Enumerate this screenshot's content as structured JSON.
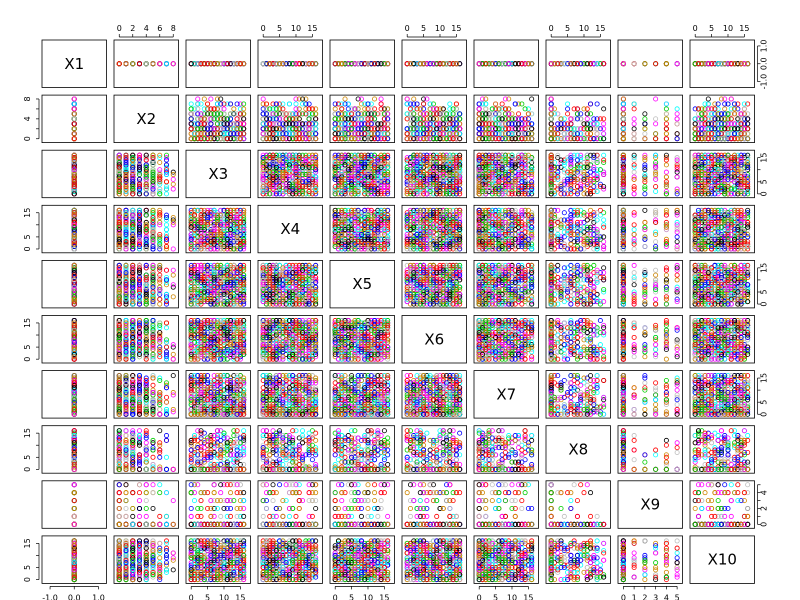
{
  "chart_data": {
    "type": "scatter",
    "title": "",
    "variables": [
      "X1",
      "X2",
      "X3",
      "X4",
      "X5",
      "X6",
      "X7",
      "X8",
      "X9",
      "X10"
    ],
    "axis_ranges": [
      [
        -1.2,
        1.2
      ],
      [
        -0.3,
        8.3
      ],
      [
        -0.6,
        17.1
      ],
      [
        -0.6,
        17.1
      ],
      [
        -0.6,
        17.1
      ],
      [
        -0.6,
        17.1
      ],
      [
        -0.6,
        17.1
      ],
      [
        -0.6,
        17.1
      ],
      [
        -0.2,
        5.2
      ],
      [
        -0.6,
        17.1
      ]
    ],
    "ticks": [
      [
        -1.0,
        0.0,
        1.0
      ],
      [
        0,
        2,
        4,
        6,
        8
      ],
      [
        0,
        5,
        10,
        15
      ],
      [
        0,
        5,
        10,
        15
      ],
      [
        0,
        5,
        10,
        15
      ],
      [
        0,
        5,
        10,
        15
      ],
      [
        0,
        5,
        10,
        15
      ],
      [
        0,
        5,
        10,
        15
      ],
      [
        0,
        1,
        2,
        3,
        4,
        5
      ],
      [
        0,
        5,
        10,
        15
      ]
    ],
    "tick_labels": [
      [
        "-1.0",
        "0.0",
        "1.0"
      ],
      [
        "0",
        "2",
        "4",
        "6",
        "8"
      ],
      [
        "0",
        "5",
        "10",
        "15"
      ],
      [
        "0",
        "5",
        "10",
        "15"
      ],
      [
        "0",
        "5",
        "10",
        "15"
      ],
      [
        "0",
        "5",
        "10",
        "15"
      ],
      [
        "0",
        "5",
        "10",
        "15"
      ],
      [
        "0",
        "5",
        "10",
        "15"
      ],
      [
        "0",
        "1",
        "2",
        "3",
        "4",
        "5"
      ],
      [
        "0",
        "5",
        "10",
        "15"
      ]
    ],
    "y_tick_labels_sparse": [
      [
        "-1.0",
        "0.0",
        "1.0"
      ],
      [
        "0",
        "4",
        "8"
      ],
      [
        "0",
        "5",
        "15"
      ],
      [
        "0",
        "5",
        "15"
      ],
      [
        "0",
        "5",
        "15"
      ],
      [
        "0",
        "5",
        "15"
      ],
      [
        "0",
        "5",
        "15"
      ],
      [
        "0",
        "5",
        "15"
      ],
      [
        "0",
        "2",
        "4"
      ],
      [
        "0",
        "5",
        "15"
      ]
    ],
    "series_colors": [
      "#0000ff",
      "#ff0000",
      "#00cd00",
      "#00ffff",
      "#ff00ff",
      "#000000",
      "#bebebe",
      "#cd8500"
    ],
    "data": {
      "n": 720,
      "columns": {
        "X1": {
          "constant": 0
        },
        "X2": {
          "min": 0,
          "max": 8,
          "integer": true
        },
        "X3": {
          "min": 0,
          "max": 16,
          "integer": true
        },
        "X4": {
          "min": 0,
          "max": 16,
          "integer": true
        },
        "X5": {
          "min": 0,
          "max": 16,
          "integer": true
        },
        "X6": {
          "min": 0,
          "max": 16,
          "integer": true
        },
        "X7": {
          "min": 0,
          "max": 16,
          "integer": true
        },
        "X8": {
          "min": 0,
          "max": 16,
          "integer": true
        },
        "X9": {
          "min": 0,
          "max": 5,
          "integer": true
        },
        "X10": {
          "min": 0,
          "max": 16,
          "integer": true
        }
      }
    },
    "grid": false,
    "legend": "none"
  }
}
